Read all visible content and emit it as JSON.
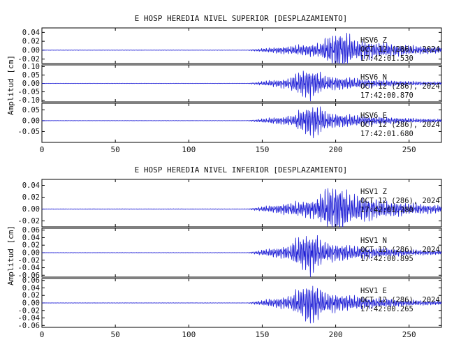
{
  "figures": [
    {
      "title": "E HOSP HEREDIA NIVEL SUPERIOR [DESPLAZAMIENTO]",
      "ylabel": "Amplitud [cm]"
    },
    {
      "title": "E HOSP HEREDIA NIVEL INFERIOR [DESPLAZAMIENTO]",
      "ylabel": "Amplitud [cm]"
    }
  ],
  "chart_data": [
    {
      "type": "line",
      "title": "E HOSP HEREDIA NIVEL SUPERIOR [DESPLAZAMIENTO]",
      "xlabel": "",
      "ylabel": "Amplitud [cm]",
      "xlim": [
        0,
        272
      ],
      "xticks": [
        0,
        50,
        100,
        150,
        200,
        250
      ],
      "line_color": "#1f1fd6",
      "panels": [
        {
          "channel": "HSV6 Z",
          "date": "OCT 12 (286), 2024",
          "time": "17:42:01.530",
          "ylim": [
            -0.03,
            0.05
          ],
          "yticks": [
            0.04,
            0.02,
            0.0,
            -0.02
          ],
          "ytick_labels": [
            "0.04",
            "0.02",
            "0.00",
            "-0.02"
          ],
          "signal_onset_s": 140,
          "peak_time_s": 203,
          "peak_amplitude": 0.05
        },
        {
          "channel": "HSV6 N",
          "date": "OCT 12 (286), 2024",
          "time": "17:42:00.870",
          "ylim": [
            -0.11,
            0.11
          ],
          "yticks": [
            0.1,
            0.05,
            0.0,
            -0.05,
            -0.1
          ],
          "ytick_labels": [
            "0.10",
            "0.05",
            "0.00",
            "-0.05",
            "-0.10"
          ],
          "signal_onset_s": 140,
          "peak_time_s": 182,
          "peak_amplitude": 0.1
        },
        {
          "channel": "HSV6 E",
          "date": "OCT 12 (286), 2024",
          "time": "17:42:01.680",
          "ylim": [
            -0.1,
            0.08
          ],
          "yticks": [
            0.05,
            0.0,
            -0.05
          ],
          "ytick_labels": [
            "0.05",
            "0.00",
            "-0.05"
          ],
          "signal_onset_s": 140,
          "peak_time_s": 185,
          "peak_amplitude": 0.08
        }
      ]
    },
    {
      "type": "line",
      "title": "E HOSP HEREDIA NIVEL INFERIOR [DESPLAZAMIENTO]",
      "xlabel": "",
      "ylabel": "Amplitud [cm]",
      "xlim": [
        0,
        272
      ],
      "xticks": [
        0,
        50,
        100,
        150,
        200,
        250
      ],
      "line_color": "#1f1fd6",
      "panels": [
        {
          "channel": "HSV1 Z",
          "date": "OCT 12 (286), 2024",
          "time": "17:42:01.280",
          "ylim": [
            -0.03,
            0.05
          ],
          "yticks": [
            0.04,
            0.02,
            0.0,
            -0.02
          ],
          "ytick_labels": [
            "0.04",
            "0.02",
            "0.00",
            "-0.02"
          ],
          "signal_onset_s": 140,
          "peak_time_s": 200,
          "peak_amplitude": 0.05
        },
        {
          "channel": "HSV1 N",
          "date": "OCT 12 (286), 2024",
          "time": "17:42:00.895",
          "ylim": [
            -0.065,
            0.065
          ],
          "yticks": [
            0.06,
            0.04,
            0.02,
            0.0,
            -0.02,
            -0.04,
            -0.06
          ],
          "ytick_labels": [
            "0.06",
            "0.04",
            "0.02",
            "0.00",
            "-0.02",
            "-0.04",
            "-0.06"
          ],
          "signal_onset_s": 140,
          "peak_time_s": 182,
          "peak_amplitude": 0.06
        },
        {
          "channel": "HSV1 E",
          "date": "OCT 12 (286), 2024",
          "time": "17:42:00.265",
          "ylim": [
            -0.065,
            0.065
          ],
          "yticks": [
            0.06,
            0.04,
            0.02,
            0.0,
            -0.02,
            -0.04,
            -0.06
          ],
          "ytick_labels": [
            "0.06",
            "0.04",
            "0.02",
            "0.00",
            "-0.02",
            "-0.04",
            "-0.06"
          ],
          "signal_onset_s": 140,
          "peak_time_s": 183,
          "peak_amplitude": 0.06
        }
      ]
    }
  ]
}
